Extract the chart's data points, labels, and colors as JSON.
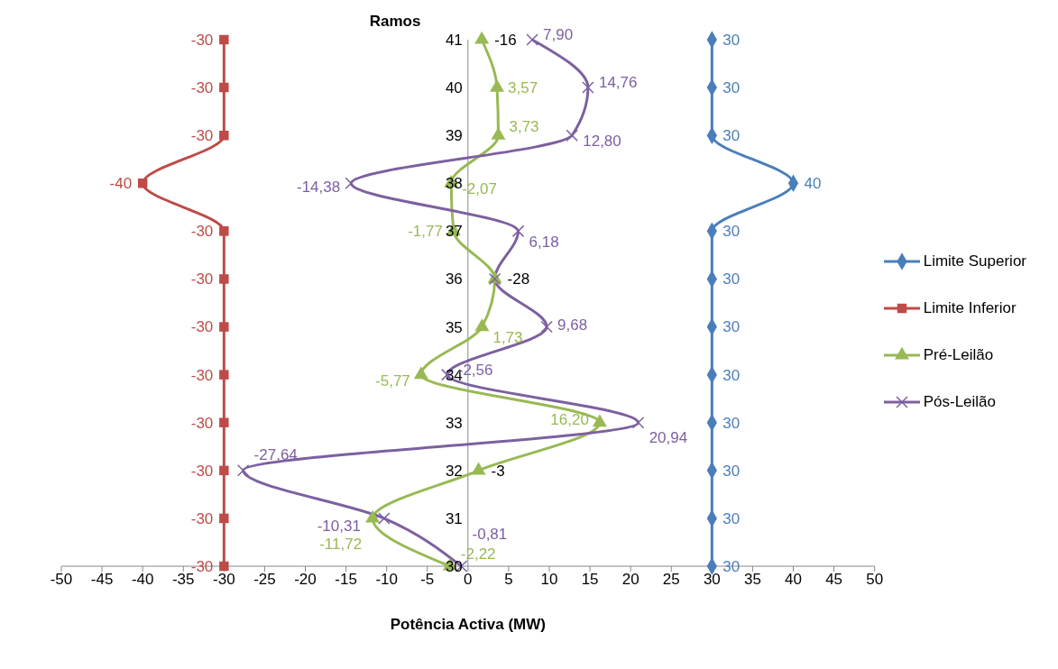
{
  "chart_data": {
    "type": "line",
    "orientation": "horizontal",
    "ylabel": "Ramos",
    "xlabel": "Potência Activa (MW)",
    "categories": [
      "41",
      "40",
      "39",
      "38",
      "37",
      "36",
      "35",
      "34",
      "33",
      "32",
      "31",
      "30"
    ],
    "xlim": [
      -50,
      50
    ],
    "xticks": [
      -50,
      -45,
      -40,
      -35,
      -30,
      -25,
      -20,
      -15,
      -10,
      -5,
      0,
      5,
      10,
      15,
      20,
      25,
      30,
      35,
      40,
      45,
      50
    ],
    "grid": false,
    "legend": "right",
    "line_style": "solid",
    "series": [
      {
        "name": "Limite Superior",
        "color": "#4a7ebb",
        "marker": "diamond",
        "values": [
          30,
          30,
          30,
          40,
          30,
          30,
          30,
          30,
          30,
          30,
          30,
          30
        ],
        "value_labels": [
          "30",
          "30",
          "30",
          "40",
          "30",
          "30",
          "30",
          "30",
          "30",
          "30",
          "30",
          "30"
        ]
      },
      {
        "name": "Limite Inferior",
        "color": "#be4b48",
        "marker": "square",
        "values": [
          -30,
          -30,
          -30,
          -40,
          -30,
          -30,
          -30,
          -30,
          -30,
          -30,
          -30,
          -30
        ],
        "value_labels": [
          "-30",
          "-30",
          "-30",
          "-40",
          "-30",
          "-30",
          "-30",
          "-30",
          "-30",
          "-30",
          "-30",
          "-30"
        ]
      },
      {
        "name": "Pré-Leilão",
        "color": "#98b954",
        "marker": "triangle",
        "values": [
          1.7,
          3.57,
          3.73,
          -2.07,
          -1.77,
          3.3,
          1.73,
          -5.77,
          16.2,
          1.3,
          -11.72,
          -2.22
        ],
        "value_labels": [
          null,
          "3,57",
          "3,73",
          "-2,07",
          "-1,77",
          null,
          "1,73",
          "-5,77",
          "16,20",
          null,
          "-11,72",
          "-2,22"
        ]
      },
      {
        "name": "Pós-Leilão",
        "color": "#7d60a0",
        "marker": "cross",
        "values": [
          7.9,
          14.76,
          12.8,
          -14.38,
          6.18,
          3.3,
          9.68,
          -2.56,
          20.94,
          -27.64,
          -10.31,
          -0.81
        ],
        "value_labels": [
          "7,90",
          "14,76",
          "12,80",
          "-14,38",
          "6,18",
          null,
          "9,68",
          "-2,56",
          "20,94",
          "-27,64",
          "-10,31",
          "-0,81"
        ]
      }
    ],
    "annotations": [
      {
        "text": "-16",
        "x": 1.7,
        "y": "41"
      },
      {
        "text": "-28",
        "x": 3.3,
        "y": "36"
      },
      {
        "text": "-3",
        "x": 1.3,
        "y": "32"
      }
    ]
  }
}
